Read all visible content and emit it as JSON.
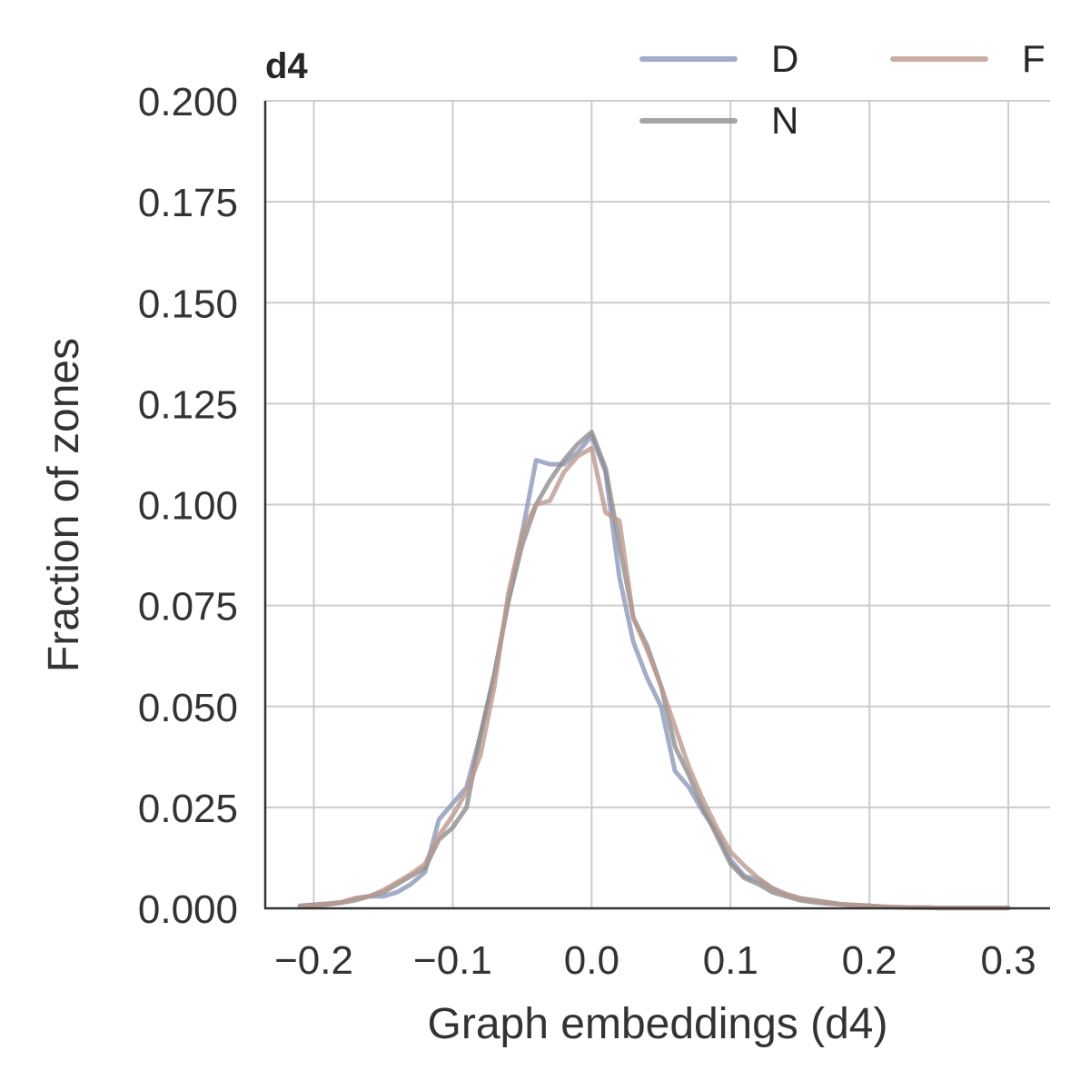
{
  "chart_data": {
    "type": "line",
    "title": "d4",
    "xlabel": "Graph embeddings (d4)",
    "ylabel": "Fraction of zones",
    "xlim": [
      -0.235,
      0.33
    ],
    "ylim": [
      0.0,
      0.2
    ],
    "xticks": [
      -0.2,
      -0.1,
      0.0,
      0.1,
      0.2,
      0.3
    ],
    "xtick_labels": [
      "−0.2",
      "−0.1",
      "0.0",
      "0.1",
      "0.2",
      "0.3"
    ],
    "yticks": [
      0.0,
      0.025,
      0.05,
      0.075,
      0.1,
      0.125,
      0.15,
      0.175,
      0.2
    ],
    "ytick_labels": [
      "0.000",
      "0.025",
      "0.050",
      "0.075",
      "0.100",
      "0.125",
      "0.150",
      "0.175",
      "0.200"
    ],
    "grid": true,
    "legend_position": "top-right",
    "colors": {
      "D": "#8d97ba",
      "N": "#8e8e8e",
      "F": "#bc9a8f"
    },
    "series": [
      {
        "name": "D",
        "x": [
          -0.21,
          -0.2,
          -0.19,
          -0.18,
          -0.17,
          -0.16,
          -0.15,
          -0.14,
          -0.13,
          -0.12,
          -0.11,
          -0.1,
          -0.09,
          -0.08,
          -0.07,
          -0.06,
          -0.05,
          -0.04,
          -0.03,
          -0.02,
          -0.01,
          0.0,
          0.01,
          0.02,
          0.03,
          0.04,
          0.05,
          0.06,
          0.07,
          0.08,
          0.09,
          0.1,
          0.11,
          0.12,
          0.13,
          0.14,
          0.15,
          0.16,
          0.17,
          0.18,
          0.19,
          0.2,
          0.21,
          0.22,
          0.23,
          0.24,
          0.25,
          0.26,
          0.27,
          0.28,
          0.29,
          0.3
        ],
        "y": [
          0.0006,
          0.0009,
          0.0012,
          0.0015,
          0.0025,
          0.003,
          0.003,
          0.004,
          0.006,
          0.009,
          0.022,
          0.026,
          0.03,
          0.043,
          0.058,
          0.076,
          0.093,
          0.111,
          0.11,
          0.11,
          0.113,
          0.117,
          0.108,
          0.082,
          0.066,
          0.057,
          0.05,
          0.034,
          0.03,
          0.024,
          0.019,
          0.012,
          0.008,
          0.007,
          0.005,
          0.0035,
          0.0025,
          0.002,
          0.0015,
          0.001,
          0.0008,
          0.0006,
          0.0004,
          0.0003,
          0.0002,
          0.0002,
          0.0001,
          0.0001,
          0.0001,
          0.0001,
          0.0001,
          0.0001
        ]
      },
      {
        "name": "N",
        "x": [
          -0.21,
          -0.2,
          -0.19,
          -0.18,
          -0.17,
          -0.16,
          -0.15,
          -0.14,
          -0.13,
          -0.12,
          -0.11,
          -0.1,
          -0.09,
          -0.08,
          -0.07,
          -0.06,
          -0.05,
          -0.04,
          -0.03,
          -0.02,
          -0.01,
          0.0,
          0.01,
          0.02,
          0.03,
          0.04,
          0.05,
          0.06,
          0.07,
          0.08,
          0.09,
          0.1,
          0.11,
          0.12,
          0.13,
          0.14,
          0.15,
          0.16,
          0.17,
          0.18,
          0.19,
          0.2,
          0.21,
          0.22,
          0.23,
          0.24,
          0.25,
          0.26,
          0.27,
          0.28,
          0.29,
          0.3
        ],
        "y": [
          0.0006,
          0.0008,
          0.001,
          0.0014,
          0.002,
          0.003,
          0.004,
          0.006,
          0.008,
          0.01,
          0.017,
          0.02,
          0.025,
          0.043,
          0.058,
          0.076,
          0.09,
          0.1,
          0.106,
          0.111,
          0.115,
          0.118,
          0.109,
          0.09,
          0.072,
          0.065,
          0.055,
          0.04,
          0.033,
          0.025,
          0.018,
          0.011,
          0.0075,
          0.006,
          0.004,
          0.003,
          0.002,
          0.0015,
          0.0012,
          0.001,
          0.0008,
          0.0006,
          0.0004,
          0.0003,
          0.0002,
          0.0002,
          0.0001,
          0.0001,
          0.0001,
          0.0001,
          0.0001,
          0.0001
        ]
      },
      {
        "name": "F",
        "x": [
          -0.21,
          -0.2,
          -0.19,
          -0.18,
          -0.17,
          -0.16,
          -0.15,
          -0.14,
          -0.13,
          -0.12,
          -0.11,
          -0.1,
          -0.09,
          -0.08,
          -0.07,
          -0.06,
          -0.05,
          -0.04,
          -0.03,
          -0.02,
          -0.01,
          0.0,
          0.01,
          0.02,
          0.03,
          0.04,
          0.05,
          0.06,
          0.07,
          0.08,
          0.09,
          0.1,
          0.11,
          0.12,
          0.13,
          0.14,
          0.15,
          0.16,
          0.17,
          0.18,
          0.19,
          0.2,
          0.21,
          0.22,
          0.23,
          0.24,
          0.25,
          0.26,
          0.27,
          0.28,
          0.29,
          0.3
        ],
        "y": [
          0.0005,
          0.0007,
          0.001,
          0.0015,
          0.0025,
          0.003,
          0.0045,
          0.0065,
          0.0085,
          0.011,
          0.018,
          0.023,
          0.029,
          0.038,
          0.055,
          0.078,
          0.093,
          0.1,
          0.101,
          0.108,
          0.112,
          0.114,
          0.098,
          0.096,
          0.072,
          0.064,
          0.055,
          0.045,
          0.035,
          0.027,
          0.02,
          0.014,
          0.0105,
          0.0075,
          0.005,
          0.0035,
          0.0025,
          0.002,
          0.0015,
          0.001,
          0.0008,
          0.0006,
          0.0004,
          0.0003,
          0.0002,
          0.0002,
          0.0001,
          0.0001,
          0.0001,
          0.0001,
          0.0001,
          0.0001
        ]
      }
    ]
  }
}
